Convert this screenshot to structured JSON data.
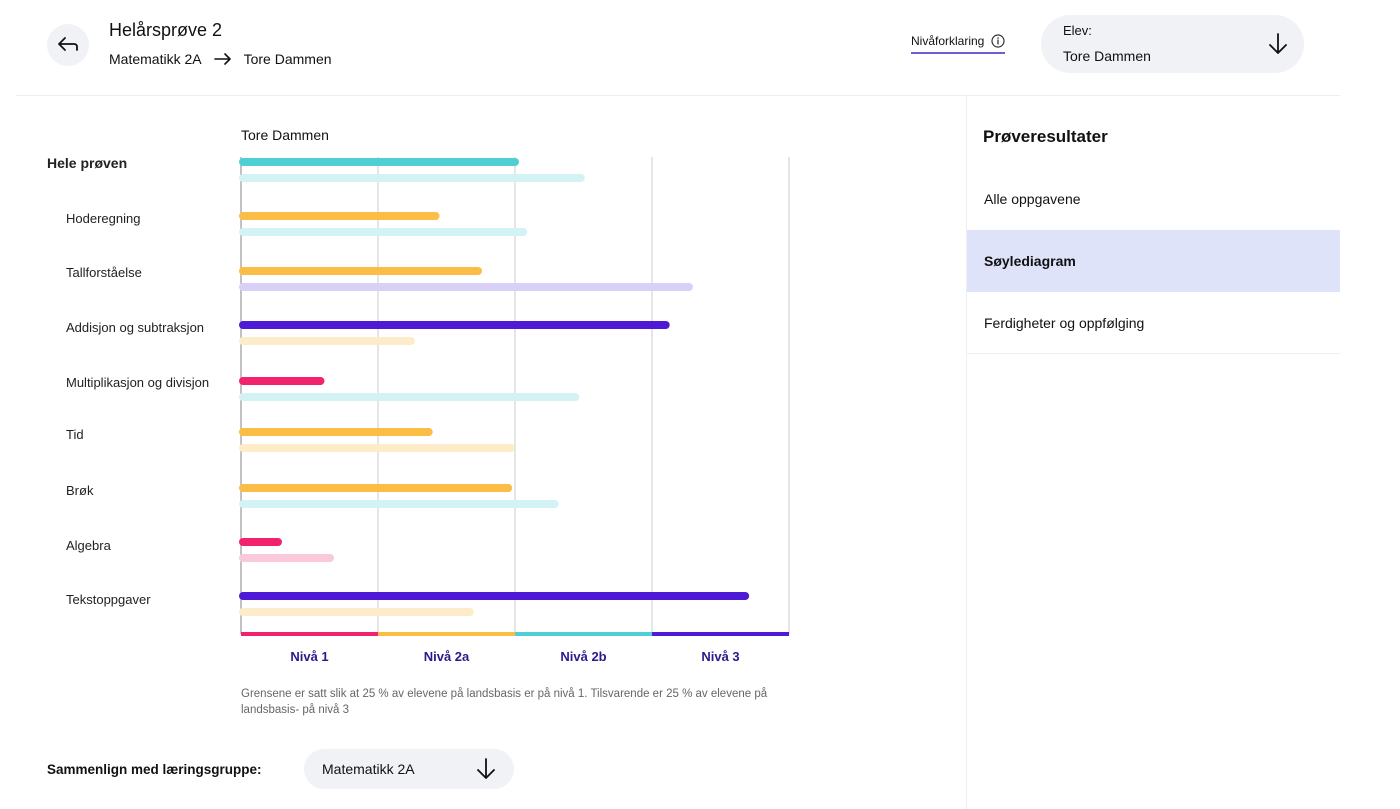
{
  "header": {
    "title": "Helårsprøve 2",
    "breadcrumb": {
      "subject": "Matematikk 2A",
      "student": "Tore Dammen"
    },
    "level_explanation": "Nivåforklaring",
    "student_select": {
      "label": "Elev:",
      "value": "Tore Dammen"
    }
  },
  "side": {
    "title": "Prøveresultater",
    "items": [
      {
        "label": "Alle oppgavene",
        "active": false
      },
      {
        "label": "Søylediagram",
        "active": true
      },
      {
        "label": "Ferdigheter og oppfølging",
        "active": false
      }
    ]
  },
  "compare": {
    "label": "Sammenlign med læringsgruppe:",
    "value": "Matematikk 2A"
  },
  "note": "Grensene er satt slik at 25 % av elevene på landsbasis er på nivå 1. Tilsvarende er 25 % av elevene på landsbasis- på nivå 3",
  "colors": {
    "nivaa1": "#f2236e",
    "nivaa2a": "#fbbd45",
    "nivaa2b": "#4ecfd3",
    "nivaa3": "#4f1ad6",
    "comparison_light": "#d8d0f7",
    "grid": "#d4d4d4"
  },
  "chart_data": {
    "type": "bar",
    "orientation": "horizontal",
    "title": "Tore Dammen",
    "xlim": [
      0,
      4
    ],
    "bands": [
      "Nivå 1",
      "Nivå 2a",
      "Nivå 2b",
      "Nivå 3"
    ],
    "categories": [
      "Hele prøven",
      "Hoderegning",
      "Tallforståelse",
      "Addisjon og subtraksjon",
      "Multiplikasjon og divisjon",
      "Tid",
      "Brøk",
      "Algebra",
      "Tekstoppgaver"
    ],
    "series": [
      {
        "values": [
          2.0,
          1.42,
          1.73,
          3.1,
          0.58,
          1.37,
          1.95,
          0.27,
          3.68
        ]
      },
      {
        "values": [
          2.48,
          2.06,
          3.27,
          1.24,
          2.44,
          1.97,
          2.29,
          0.65,
          1.67
        ]
      }
    ]
  }
}
